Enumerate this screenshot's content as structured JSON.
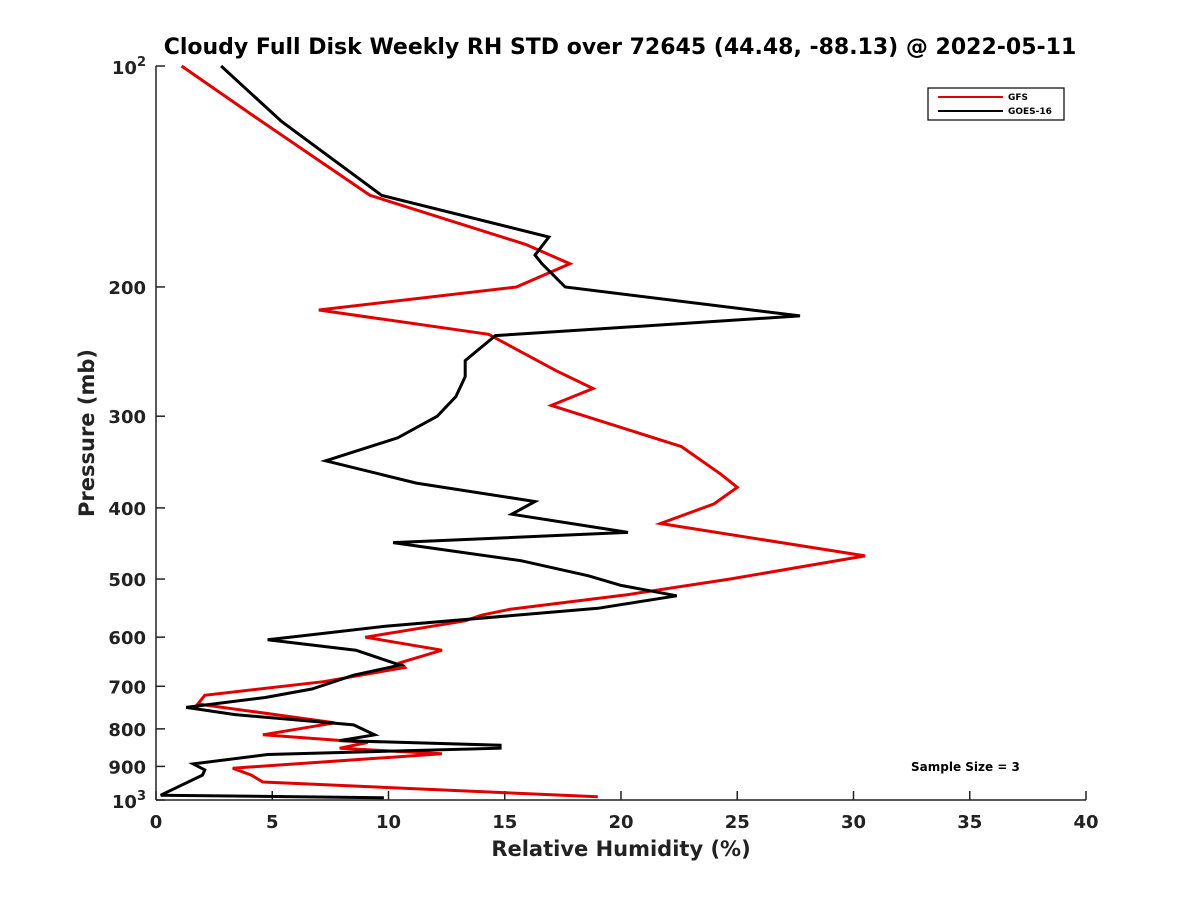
{
  "chart_data": {
    "type": "line",
    "title": "Cloudy Full Disk Weekly RH STD over 72645 (44.48, -88.13) @ 2022-05-11",
    "xlabel": "Relative Humidity (%)",
    "ylabel": "Pressure (mb)",
    "xlim": [
      0,
      40
    ],
    "ylim": [
      100,
      1000
    ],
    "y_scale": "log",
    "y_reversed": true,
    "x_ticks": [
      "0",
      "5",
      "10",
      "15",
      "20",
      "25",
      "30",
      "35",
      "40"
    ],
    "y_ticks": [
      {
        "value": 100,
        "base": "10",
        "exp": "2"
      },
      {
        "value": 200,
        "label": "200"
      },
      {
        "value": 300,
        "label": "300"
      },
      {
        "value": 400,
        "label": "400"
      },
      {
        "value": 500,
        "label": "500"
      },
      {
        "value": 600,
        "label": "600"
      },
      {
        "value": 700,
        "label": "700"
      },
      {
        "value": 800,
        "label": "800"
      },
      {
        "value": 900,
        "label": "900"
      },
      {
        "value": 1000,
        "base": "10",
        "exp": "3"
      }
    ],
    "grid": false,
    "legend_position": "top-right",
    "series": [
      {
        "name": "GFS",
        "color": "#e00000",
        "points": [
          [
            1.1,
            100
          ],
          [
            4.2,
            117
          ],
          [
            9.2,
            150
          ],
          [
            15.9,
            175
          ],
          [
            17.8,
            186
          ],
          [
            15.5,
            200
          ],
          [
            7.0,
            215
          ],
          [
            14.3,
            232
          ],
          [
            17.2,
            260
          ],
          [
            18.8,
            275
          ],
          [
            17.0,
            290
          ],
          [
            22.6,
            330
          ],
          [
            24.3,
            360
          ],
          [
            25.0,
            375
          ],
          [
            24.0,
            395
          ],
          [
            21.7,
            420
          ],
          [
            30.5,
            465
          ],
          [
            24.7,
            500
          ],
          [
            20.3,
            525
          ],
          [
            15.2,
            550
          ],
          [
            14.0,
            560
          ],
          [
            13.3,
            570
          ],
          [
            9.0,
            600
          ],
          [
            12.3,
            625
          ],
          [
            10.5,
            650
          ],
          [
            10.7,
            660
          ],
          [
            7.2,
            690
          ],
          [
            2.1,
            720
          ],
          [
            1.8,
            740
          ],
          [
            7.7,
            785
          ],
          [
            4.6,
            815
          ],
          [
            9.1,
            835
          ],
          [
            7.9,
            850
          ],
          [
            12.3,
            865
          ],
          [
            3.3,
            905
          ],
          [
            4.1,
            925
          ],
          [
            4.6,
            945
          ],
          [
            19.0,
            990
          ]
        ]
      },
      {
        "name": "GOES-16",
        "color": "#000000",
        "points": [
          [
            2.8,
            100
          ],
          [
            5.4,
            119
          ],
          [
            9.7,
            150
          ],
          [
            16.9,
            171
          ],
          [
            16.3,
            181
          ],
          [
            16.6,
            186
          ],
          [
            17.6,
            200
          ],
          [
            27.7,
            219
          ],
          [
            14.6,
            233
          ],
          [
            13.3,
            252
          ],
          [
            13.3,
            265
          ],
          [
            12.9,
            282
          ],
          [
            12.1,
            300
          ],
          [
            10.4,
            321
          ],
          [
            7.3,
            345
          ],
          [
            11.2,
            370
          ],
          [
            16.3,
            392
          ],
          [
            15.3,
            408
          ],
          [
            20.3,
            432
          ],
          [
            10.2,
            446
          ],
          [
            15.7,
            472
          ],
          [
            18.6,
            495
          ],
          [
            20.0,
            510
          ],
          [
            22.4,
            527
          ],
          [
            19.0,
            548
          ],
          [
            9.8,
            580
          ],
          [
            4.8,
            605
          ],
          [
            8.6,
            625
          ],
          [
            10.5,
            655
          ],
          [
            8.5,
            676
          ],
          [
            6.7,
            706
          ],
          [
            4.7,
            725
          ],
          [
            1.3,
            748
          ],
          [
            3.4,
            765
          ],
          [
            8.5,
            790
          ],
          [
            9.4,
            815
          ],
          [
            7.9,
            830
          ],
          [
            14.8,
            842
          ],
          [
            14.8,
            850
          ],
          [
            4.8,
            867
          ],
          [
            1.6,
            893
          ],
          [
            2.1,
            910
          ],
          [
            2.0,
            925
          ],
          [
            0.2,
            985
          ],
          [
            9.8,
            993
          ]
        ]
      }
    ],
    "annotations": [
      "Sample Size = 3"
    ]
  }
}
